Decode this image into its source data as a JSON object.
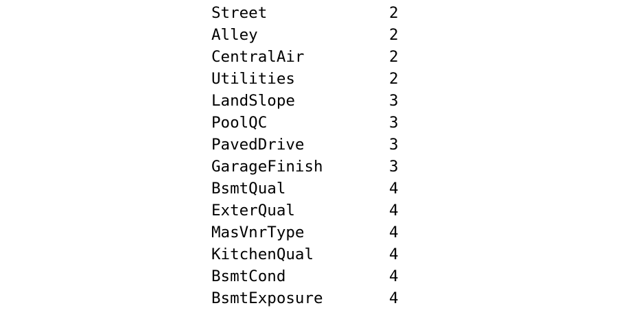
{
  "rows": [
    {
      "name": "Street",
      "count": "2"
    },
    {
      "name": "Alley",
      "count": "2"
    },
    {
      "name": "CentralAir",
      "count": "2"
    },
    {
      "name": "Utilities",
      "count": "2"
    },
    {
      "name": "LandSlope",
      "count": "3"
    },
    {
      "name": "PoolQC",
      "count": "3"
    },
    {
      "name": "PavedDrive",
      "count": "3"
    },
    {
      "name": "GarageFinish",
      "count": "3"
    },
    {
      "name": "BsmtQual",
      "count": "4"
    },
    {
      "name": "ExterQual",
      "count": "4"
    },
    {
      "name": "MasVnrType",
      "count": "4"
    },
    {
      "name": "KitchenQual",
      "count": "4"
    },
    {
      "name": "BsmtCond",
      "count": "4"
    },
    {
      "name": "BsmtExposure",
      "count": "4"
    }
  ]
}
